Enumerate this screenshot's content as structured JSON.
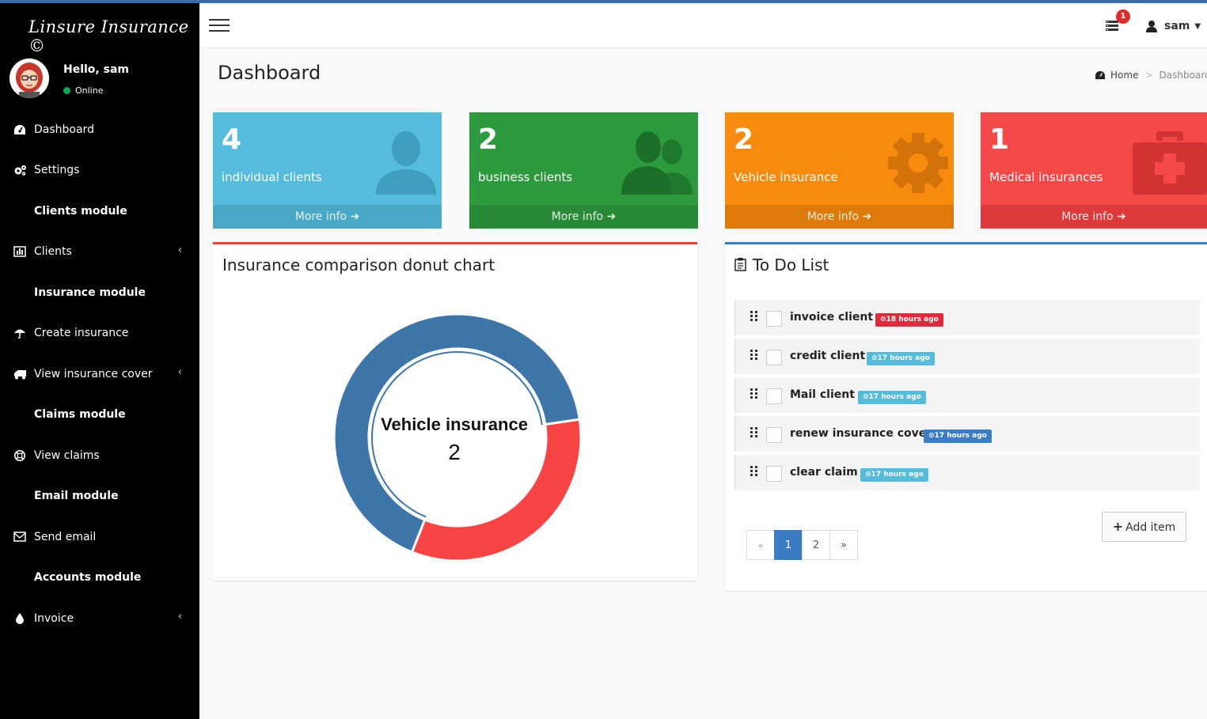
{
  "brand": {
    "title": "Linsure Insurance ©"
  },
  "user": {
    "greeting": "Hello, sam",
    "status": "Online",
    "name": "sam"
  },
  "notifications": {
    "count": "1"
  },
  "menu": {
    "dashboard": "Dashboard",
    "settings": "Settings",
    "clients_module": "Clients module",
    "clients": "Clients",
    "insurance_module": "Insurance module",
    "create_insurance": "Create insurance",
    "view_insurance_cover": "View insurance cover",
    "claims_module": "Claims module",
    "view_claims": "View claims",
    "email_module": "Email module",
    "send_email": "Send email",
    "accounts_module": "Accounts module",
    "invoice": "Invoice"
  },
  "page": {
    "title": "Dashboard",
    "breadcrumb_home": "Home",
    "breadcrumb_current": "Dashboard"
  },
  "stats": [
    {
      "value": "4",
      "label": "individual clients",
      "link": "More info",
      "color": "#55bcdb"
    },
    {
      "value": "2",
      "label": "business clients",
      "link": "More info",
      "color": "#2e9a3f"
    },
    {
      "value": "2",
      "label": "Vehicle insurance",
      "link": "More info",
      "color": "#f68b0e"
    },
    {
      "value": "1",
      "label": "Medical insurances",
      "link": "More info",
      "color": "#f54848"
    }
  ],
  "donut": {
    "title": "Insurance comparison donut chart",
    "center_label": "Vehicle insurance",
    "center_value": "2"
  },
  "chart_data": {
    "type": "pie",
    "title": "Insurance comparison donut chart",
    "categories": [
      "Vehicle insurance",
      "Medical insurances"
    ],
    "values": [
      2,
      1
    ],
    "colors": [
      "#3f76aa",
      "#f84444"
    ]
  },
  "todo": {
    "title": "To Do List",
    "items": [
      {
        "text": "invoice client",
        "time": "18 hours ago",
        "color": "#dd2a3c"
      },
      {
        "text": "credit client",
        "time": "17 hours ago",
        "color": "#55bcdb"
      },
      {
        "text": "Mail client",
        "time": "17 hours ago",
        "color": "#55bcdb"
      },
      {
        "text": "renew insurance cover",
        "time": "17 hours ago",
        "color": "#3c7cc5"
      },
      {
        "text": "clear claim",
        "time": "17 hours ago",
        "color": "#55bcdb"
      }
    ],
    "pager": {
      "prev": "«",
      "page1": "1",
      "page2": "2",
      "next": "»"
    },
    "add_label": "Add item"
  }
}
